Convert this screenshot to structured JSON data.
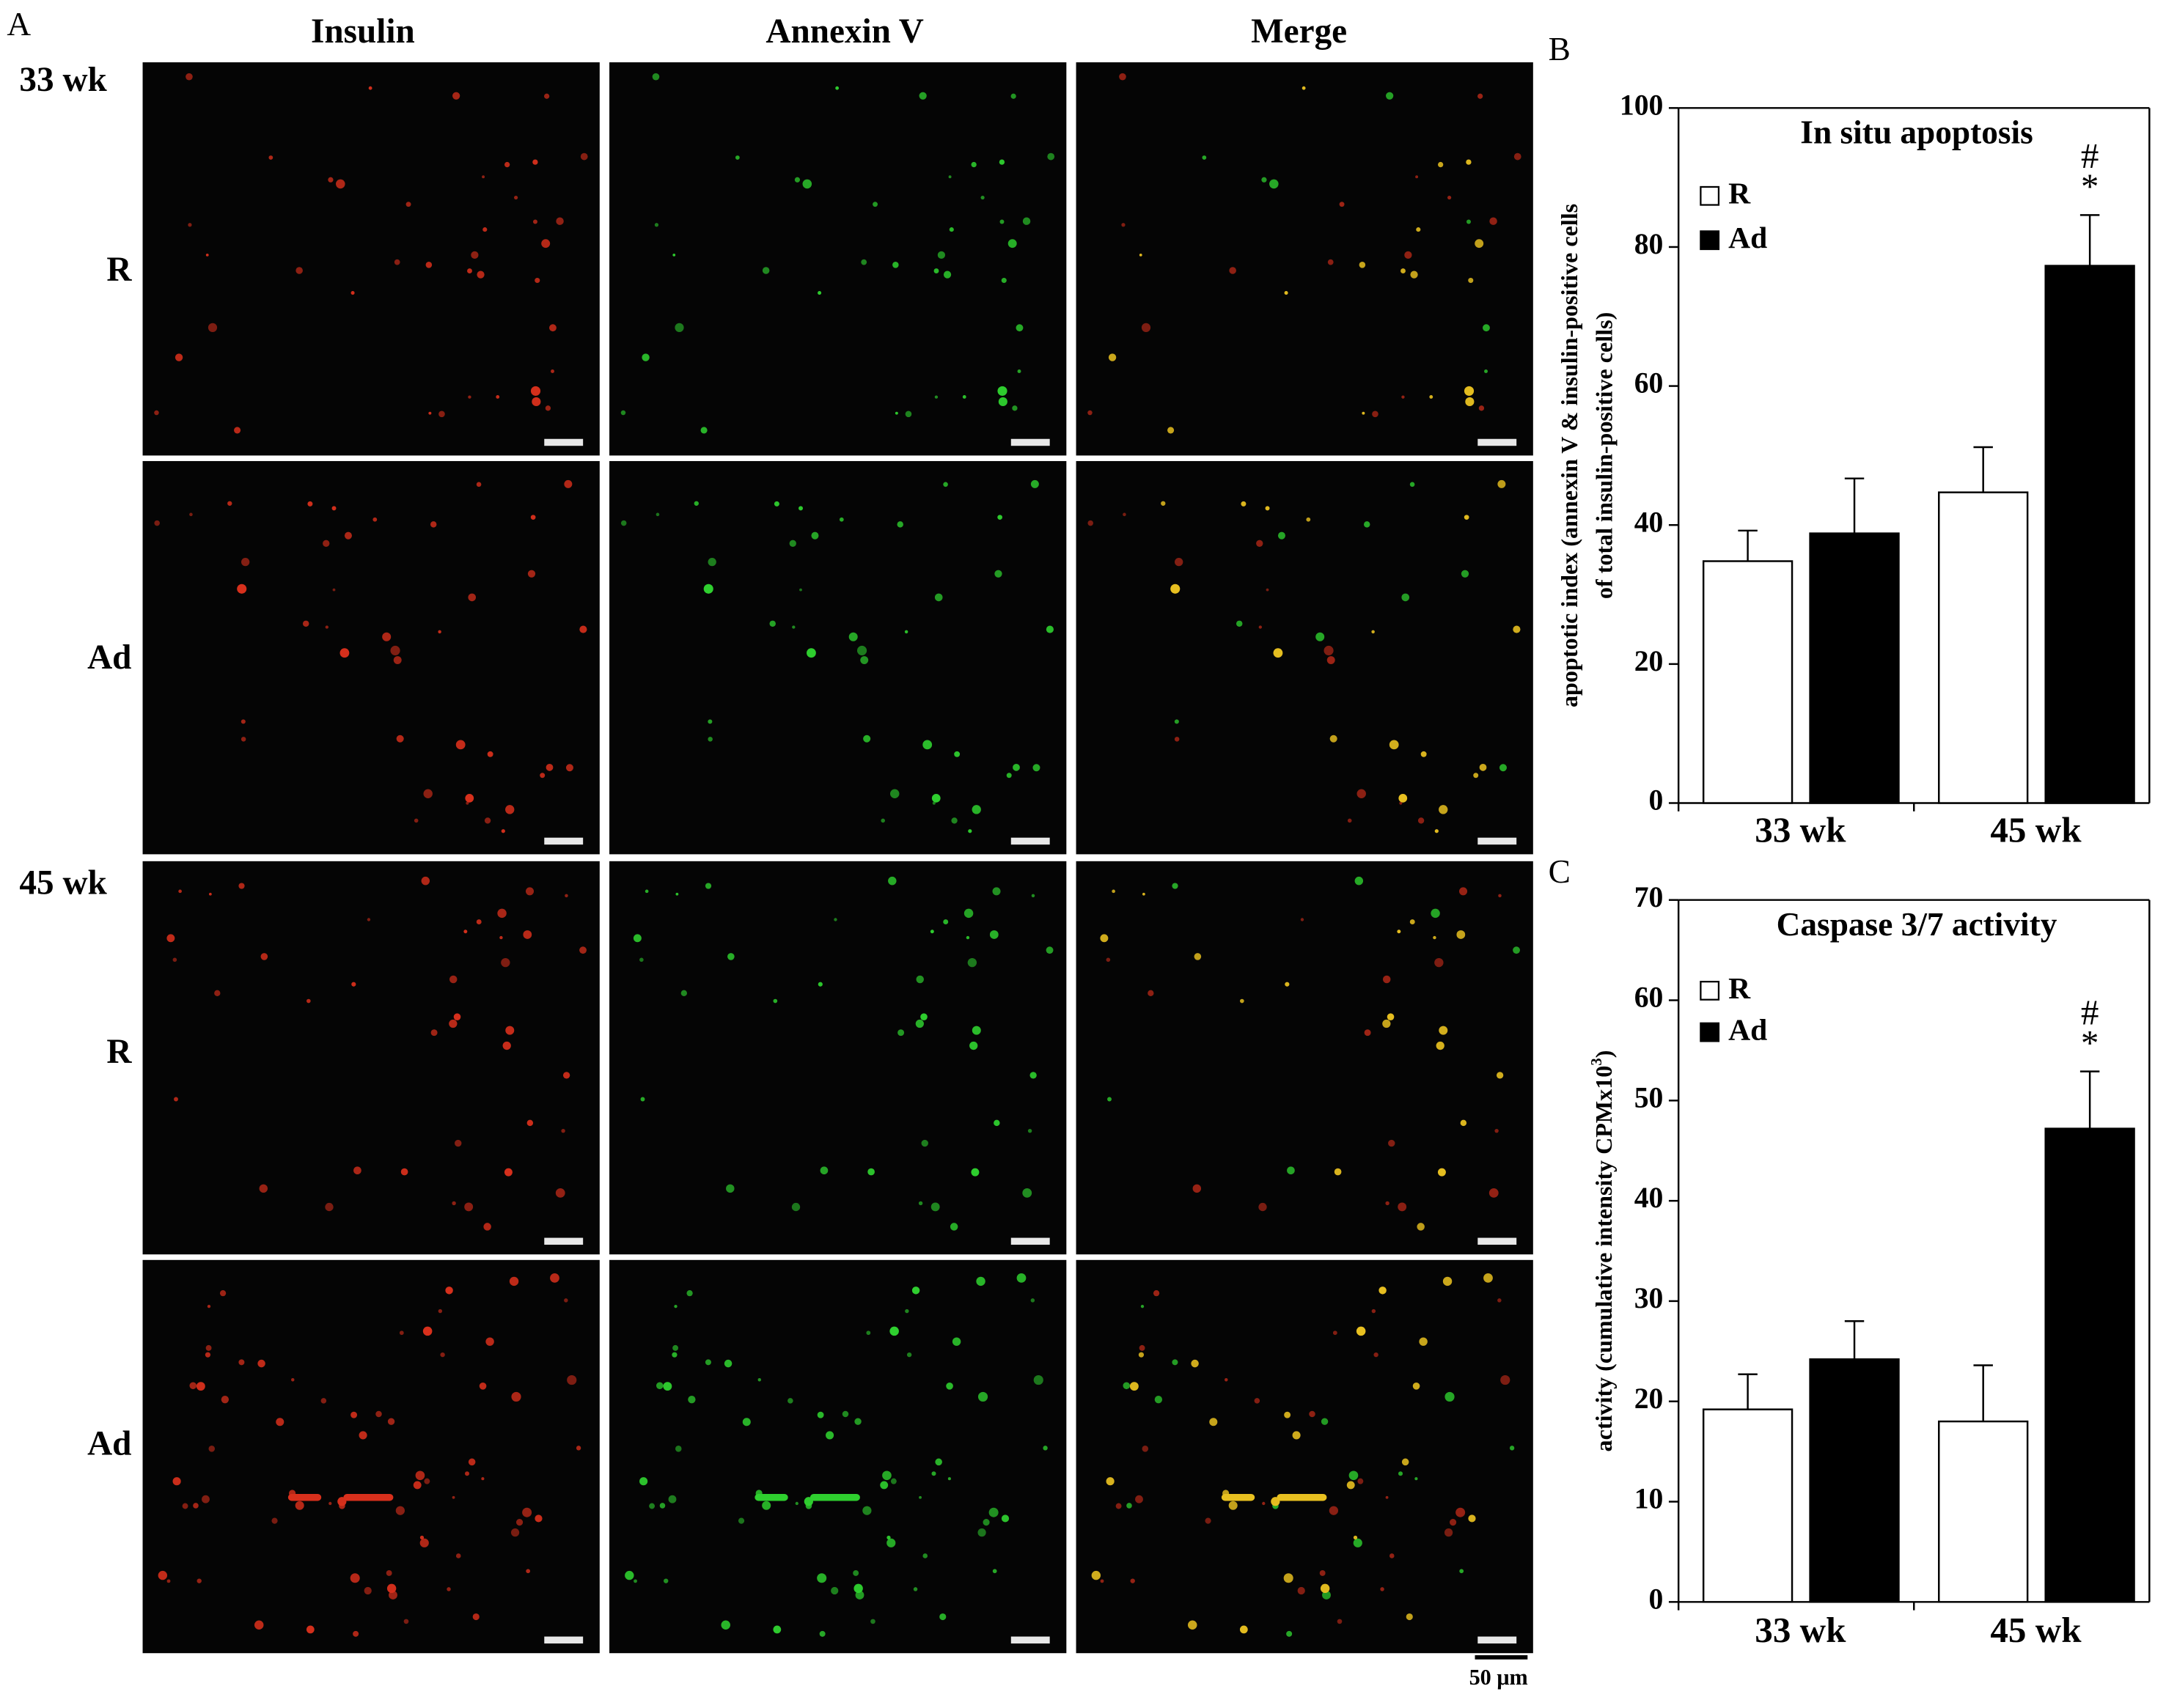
{
  "panel_a": {
    "label": "A",
    "columns": [
      "Insulin",
      "Annexin V",
      "Merge"
    ],
    "row_groups": [
      "33 wk",
      "45 wk"
    ],
    "rows": [
      "R",
      "Ad",
      "R",
      "Ad"
    ],
    "scale_bar": "50 μm"
  },
  "chart_data": [
    {
      "type": "bar",
      "panel_label": "B",
      "title": "In situ apoptosis",
      "y_label": [
        "apoptotic index (annexin V & insulin-positive cells",
        "of total insulin-positive cells)"
      ],
      "categories": [
        "33 wk",
        "45 wk"
      ],
      "series": [
        {
          "name": "R",
          "color": "#ffffff",
          "values": [
            34.8,
            44.7
          ],
          "errors": [
            4.4,
            6.5
          ]
        },
        {
          "name": "Ad",
          "color": "#000000",
          "values": [
            38.8,
            77.3
          ],
          "errors": [
            7.9,
            7.3
          ]
        }
      ],
      "annotations": [
        "#",
        "*"
      ],
      "ylim": [
        0,
        100
      ],
      "yticks": [
        0,
        20,
        40,
        60,
        80,
        100
      ]
    },
    {
      "type": "bar",
      "panel_label": "C",
      "title": "Caspase 3/7 activity",
      "y_label": [
        "activity (cumulative intensity CPMx10",
        "3",
        ")"
      ],
      "categories": [
        "33 wk",
        "45 wk"
      ],
      "series": [
        {
          "name": "R",
          "color": "#ffffff",
          "values": [
            19.2,
            18.0
          ],
          "errors": [
            3.5,
            5.6
          ]
        },
        {
          "name": "Ad",
          "color": "#000000",
          "values": [
            24.2,
            47.2
          ],
          "errors": [
            3.8,
            5.7
          ]
        }
      ],
      "annotations": [
        "#",
        "*"
      ],
      "ylim": [
        0,
        70
      ],
      "yticks": [
        0,
        10,
        20,
        30,
        40,
        50,
        60,
        70
      ]
    }
  ]
}
